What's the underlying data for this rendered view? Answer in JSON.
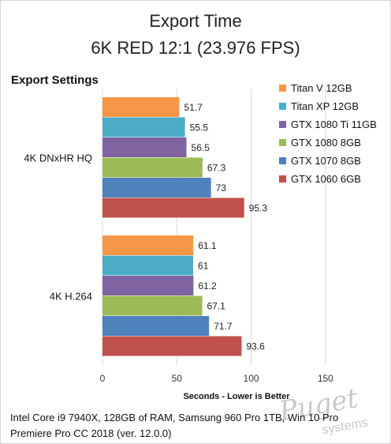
{
  "chart_data": {
    "type": "bar",
    "orientation": "horizontal",
    "title": "Export Time",
    "subtitle": "6K RED 12:1 (23.976 FPS)",
    "category_axis_title": "Export Settings",
    "xlabel": "Seconds - Lower is Better",
    "xlim": [
      0,
      175
    ],
    "xticks": [
      0,
      50,
      100,
      150
    ],
    "grid": true,
    "legend_position": "right",
    "categories": [
      "4K DNxHR HQ",
      "4K H.264"
    ],
    "series": [
      {
        "name": "Titan V 12GB",
        "color": "#F79646",
        "values": [
          51.7,
          61.1
        ]
      },
      {
        "name": "Titan XP 12GB",
        "color": "#4BACC6",
        "values": [
          55.5,
          61
        ]
      },
      {
        "name": "GTX 1080 Ti 11GB",
        "color": "#8064A2",
        "values": [
          56.5,
          61.2
        ]
      },
      {
        "name": "GTX 1080 8GB",
        "color": "#9BBB59",
        "values": [
          67.3,
          67.1
        ]
      },
      {
        "name": "GTX 1070 8GB",
        "color": "#4F81BD",
        "values": [
          73,
          71.7
        ]
      },
      {
        "name": "GTX 1060 6GB",
        "color": "#C0504D",
        "values": [
          95.3,
          93.6
        ]
      }
    ]
  },
  "footnote": {
    "line1": "Intel Core i9 7940X, 128GB of RAM, Samsung 960 Pro 1TB, Win 10 Pro",
    "line2": "Premiere Pro CC 2018 (ver. 12.0.0)"
  },
  "watermark": {
    "brand": "Puget",
    "sub": "systems"
  }
}
